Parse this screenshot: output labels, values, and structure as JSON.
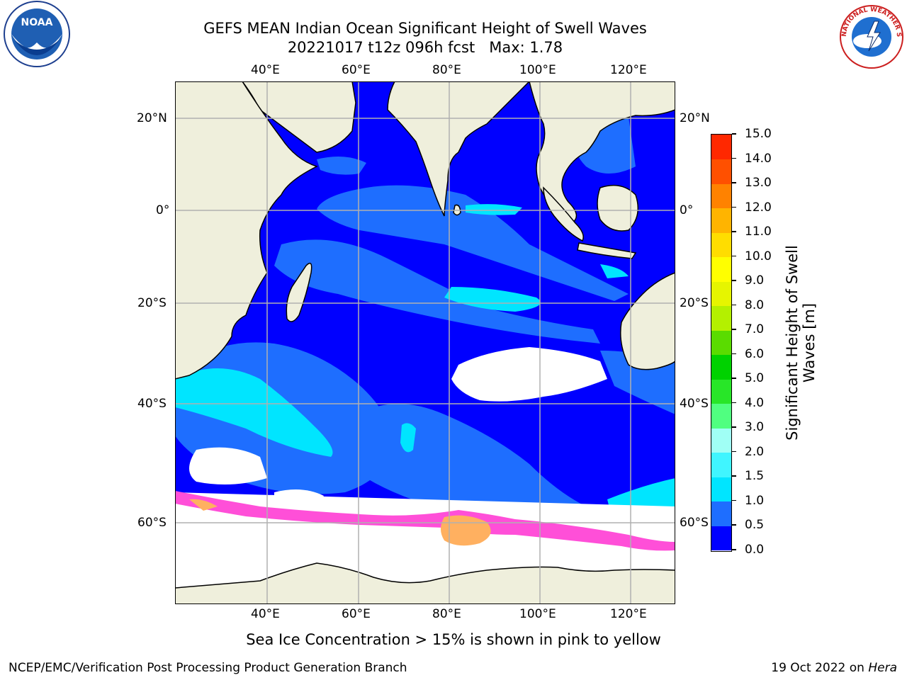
{
  "title_line1": "GEFS MEAN Indian Ocean Significant Height of Swell Waves",
  "title_line2": "20221017 t12z 096h fcst   Max: 1.78",
  "lon_ticks": [
    "40°E",
    "60°E",
    "80°E",
    "100°E",
    "120°E"
  ],
  "lat_ticks": [
    "20°N",
    "0°",
    "20°S",
    "40°S",
    "60°S"
  ],
  "colorbar": {
    "label_line1": "Significant Height of Swell",
    "label_line2": "Waves [m]",
    "ticks": [
      "0.0",
      "0.5",
      "1.0",
      "1.5",
      "2.0",
      "3.0",
      "4.0",
      "5.0",
      "6.0",
      "7.0",
      "8.0",
      "9.0",
      "10.0",
      "11.0",
      "12.0",
      "13.0",
      "14.0",
      "15.0"
    ],
    "colors": [
      "#0000ff",
      "#1e6eff",
      "#00e5ff",
      "#40f5ff",
      "#a0fff5",
      "#50ff80",
      "#28e628",
      "#00d200",
      "#5adc00",
      "#b4f000",
      "#e6f500",
      "#ffff00",
      "#ffdd00",
      "#ffb400",
      "#ff8200",
      "#ff5000",
      "#ff2800",
      "#ff0000"
    ]
  },
  "caption": "Sea Ice Concentration > 15% is shown in pink to yellow",
  "footer_left": "NCEP/EMC/Verification Post Processing Product Generation Branch",
  "footer_right_prefix": "19 Oct 2022 on ",
  "footer_right_host": "Hera",
  "logos": {
    "noaa_text": "NOAA",
    "nws_text": "NATIONAL WEATHER SERVICE"
  }
}
